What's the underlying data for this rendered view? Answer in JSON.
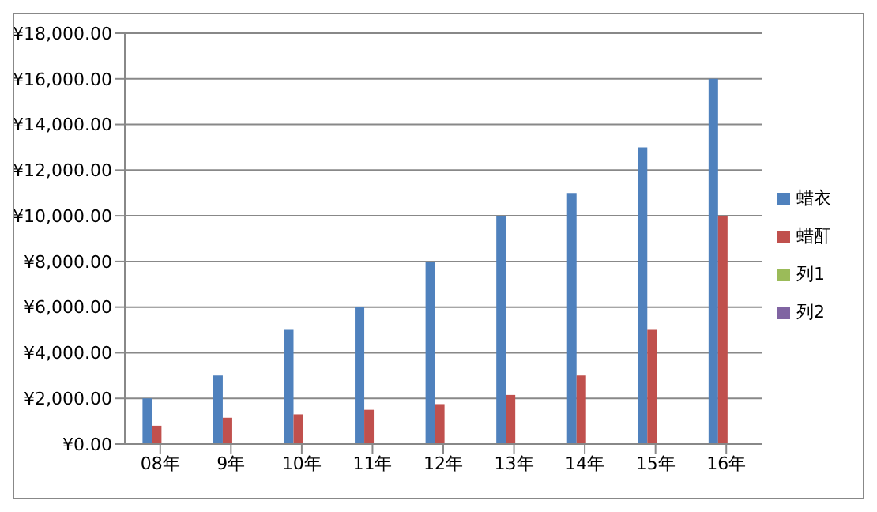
{
  "chart_data": {
    "type": "bar",
    "categories": [
      "08年",
      "9年",
      "10年",
      "11年",
      "12年",
      "13年",
      "14年",
      "15年",
      "16年"
    ],
    "series": [
      {
        "name": "蜡衣",
        "color": "#4f81bd",
        "values": [
          2000,
          3000,
          5000,
          6000,
          8000,
          10000,
          11000,
          13000,
          16000
        ]
      },
      {
        "name": "蜡酐",
        "color": "#c0504d",
        "values": [
          800,
          1150,
          1300,
          1500,
          1750,
          2150,
          3000,
          5000,
          10000
        ]
      },
      {
        "name": "列1",
        "color": "#9bbb59",
        "values": [
          null,
          null,
          null,
          null,
          null,
          null,
          null,
          null,
          null
        ]
      },
      {
        "name": "列2",
        "color": "#8064a2",
        "values": [
          null,
          null,
          null,
          null,
          null,
          null,
          null,
          null,
          null
        ]
      }
    ],
    "ylim": [
      0,
      18000
    ],
    "yticks": [
      {
        "value": 0,
        "label": "¥0.00"
      },
      {
        "value": 2000,
        "label": "¥2,000.00"
      },
      {
        "value": 4000,
        "label": "¥4,000.00"
      },
      {
        "value": 6000,
        "label": "¥6,000.00"
      },
      {
        "value": 8000,
        "label": "¥8,000.00"
      },
      {
        "value": 10000,
        "label": "¥10,000.00"
      },
      {
        "value": 12000,
        "label": "¥12,000.00"
      },
      {
        "value": 14000,
        "label": "¥14,000.00"
      },
      {
        "value": 16000,
        "label": "¥16,000.00"
      },
      {
        "value": 18000,
        "label": "¥18,000.00"
      }
    ],
    "grid": "y",
    "legend": "right"
  }
}
